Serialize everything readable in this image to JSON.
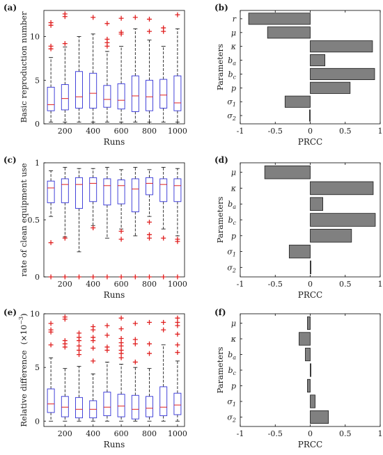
{
  "chart_data": [
    {
      "panel": "(a)",
      "type": "box",
      "xlabel": "Runs",
      "ylabel": "Basic reproduction number",
      "categories": [
        100,
        200,
        300,
        400,
        500,
        600,
        700,
        800,
        900,
        1000
      ],
      "xticks": [
        "200",
        "400",
        "600",
        "800",
        "1000"
      ],
      "ylim": [
        0,
        13
      ],
      "yticks": [
        "0",
        "5",
        "10"
      ],
      "boxes": [
        {
          "whislo": 0.2,
          "q1": 1.5,
          "med": 2.2,
          "q3": 4.2,
          "whishi": 7.6,
          "fliers": [
            8.6,
            8.9,
            11.3,
            11.6
          ]
        },
        {
          "whislo": 0.2,
          "q1": 1.6,
          "med": 2.9,
          "q3": 4.5,
          "whishi": 8.8,
          "fliers": [
            9.2,
            12.3,
            12.6
          ]
        },
        {
          "whislo": 0.2,
          "q1": 1.8,
          "med": 3.1,
          "q3": 6.0,
          "whishi": 10.0,
          "fliers": []
        },
        {
          "whislo": 0.2,
          "q1": 1.8,
          "med": 3.5,
          "q3": 5.8,
          "whishi": 10.3,
          "fliers": [
            12.2
          ]
        },
        {
          "whislo": 0.2,
          "q1": 1.9,
          "med": 2.8,
          "q3": 4.4,
          "whishi": 8.3,
          "fliers": [
            8.9,
            9.3,
            9.7,
            11.5
          ]
        },
        {
          "whislo": 0.2,
          "q1": 1.7,
          "med": 2.7,
          "q3": 4.6,
          "whishi": 8.9,
          "fliers": [
            10.3,
            10.5,
            12.1
          ]
        },
        {
          "whislo": 0.2,
          "q1": 1.4,
          "med": 3.2,
          "q3": 5.5,
          "whishi": 10.9,
          "fliers": [
            12.2
          ]
        },
        {
          "whislo": 0.2,
          "q1": 1.5,
          "med": 3.1,
          "q3": 5.0,
          "whishi": 9.6,
          "fliers": [
            10.6,
            12.0
          ]
        },
        {
          "whislo": 0.2,
          "q1": 1.8,
          "med": 3.3,
          "q3": 5.1,
          "whishi": 8.9,
          "fliers": [
            10.6,
            11.0
          ]
        },
        {
          "whislo": 0.2,
          "q1": 1.5,
          "med": 2.4,
          "q3": 5.5,
          "whishi": 10.9,
          "fliers": [
            12.5
          ]
        }
      ]
    },
    {
      "panel": "(b)",
      "type": "bar",
      "orientation": "horizontal",
      "xlabel": "PRCC",
      "ylabel": "Parameters",
      "xlim": [
        -1,
        1
      ],
      "xticks": [
        "-1",
        "-0.5",
        "0",
        "0.5",
        "1"
      ],
      "categories": [
        "r",
        "μ",
        "κ",
        "b_a",
        "b_c",
        "p",
        "σ_1",
        "σ_2"
      ],
      "values": [
        -0.88,
        -0.61,
        0.89,
        0.21,
        0.92,
        0.57,
        -0.36,
        -0.01
      ]
    },
    {
      "panel": "(c)",
      "type": "box",
      "xlabel": "Runs",
      "ylabel": "rate of clean equipment use",
      "categories": [
        100,
        200,
        300,
        400,
        500,
        600,
        700,
        800,
        900,
        1000
      ],
      "xticks": [
        "200",
        "400",
        "600",
        "800",
        "1000"
      ],
      "ylim": [
        0,
        1
      ],
      "yticks": [
        "0",
        "0.5",
        "1"
      ],
      "boxes": [
        {
          "whislo": 0.53,
          "q1": 0.65,
          "med": 0.78,
          "q3": 0.84,
          "whishi": 0.93,
          "fliers": [
            0.3,
            0.0
          ]
        },
        {
          "whislo": 0.35,
          "q1": 0.65,
          "med": 0.81,
          "q3": 0.86,
          "whishi": 0.96,
          "fliers": [
            0.34,
            0.0
          ]
        },
        {
          "whislo": 0.22,
          "q1": 0.6,
          "med": 0.81,
          "q3": 0.87,
          "whishi": 0.95,
          "fliers": [
            0.0
          ]
        },
        {
          "whislo": 0.45,
          "q1": 0.66,
          "med": 0.82,
          "q3": 0.87,
          "whishi": 0.95,
          "fliers": [
            0.43,
            0.0
          ]
        },
        {
          "whislo": 0.34,
          "q1": 0.63,
          "med": 0.8,
          "q3": 0.86,
          "whishi": 0.96,
          "fliers": [
            0.0
          ]
        },
        {
          "whislo": 0.42,
          "q1": 0.64,
          "med": 0.8,
          "q3": 0.85,
          "whishi": 0.94,
          "fliers": [
            0.4,
            0.33,
            0.0
          ]
        },
        {
          "whislo": 0.36,
          "q1": 0.57,
          "med": 0.77,
          "q3": 0.86,
          "whishi": 0.96,
          "fliers": [
            0.0
          ]
        },
        {
          "whislo": 0.53,
          "q1": 0.72,
          "med": 0.82,
          "q3": 0.87,
          "whishi": 0.94,
          "fliers": [
            0.48,
            0.37,
            0.34,
            0.0
          ]
        },
        {
          "whislo": 0.42,
          "q1": 0.66,
          "med": 0.81,
          "q3": 0.86,
          "whishi": 0.96,
          "fliers": [
            0.34,
            0.0
          ]
        },
        {
          "whislo": 0.36,
          "q1": 0.66,
          "med": 0.8,
          "q3": 0.86,
          "whishi": 0.95,
          "fliers": [
            0.33,
            0.31,
            0.0
          ]
        }
      ]
    },
    {
      "panel": "(d)",
      "type": "bar",
      "orientation": "horizontal",
      "xlabel": "PRCC",
      "ylabel": "Parameters",
      "xlim": [
        -1,
        1
      ],
      "xticks": [
        "-1",
        "-0.5",
        "0",
        "0.5",
        "1"
      ],
      "categories": [
        "μ",
        "κ",
        "b_a",
        "b_c",
        "p",
        "σ_1",
        "σ_2"
      ],
      "values": [
        -0.65,
        0.9,
        0.18,
        0.93,
        0.59,
        -0.3,
        0.01
      ]
    },
    {
      "panel": "(e)",
      "type": "box",
      "xlabel": "Runs",
      "ylabel": "Relative difference",
      "ylabel_unit": "(×10",
      "ylabel_unit_exp": "−3",
      "ylabel_unit_close": ")",
      "categories": [
        100,
        200,
        300,
        400,
        500,
        600,
        700,
        800,
        900,
        1000
      ],
      "xticks": [
        "200",
        "400",
        "600",
        "800",
        "1000"
      ],
      "ylim": [
        -0.5,
        10
      ],
      "yticks": [
        "0",
        "5",
        "10"
      ],
      "boxes": [
        {
          "whislo": 0,
          "q1": 0.8,
          "med": 1.6,
          "q3": 3.0,
          "whishi": 5.9,
          "fliers": [
            7.1,
            8.3,
            8.5,
            9.1
          ]
        },
        {
          "whislo": 0,
          "q1": 0.4,
          "med": 1.3,
          "q3": 2.3,
          "whishi": 4.9,
          "fliers": [
            6.9,
            7.2,
            7.5,
            9.5,
            9.7
          ]
        },
        {
          "whislo": 0,
          "q1": 0.3,
          "med": 1.1,
          "q3": 2.2,
          "whishi": 5.1,
          "fliers": [
            6.2,
            6.6,
            7.0,
            7.5,
            7.8,
            8.2
          ]
        },
        {
          "whislo": 0,
          "q1": 0.3,
          "med": 1.1,
          "q3": 1.9,
          "whishi": 4.4,
          "fliers": [
            5.6,
            6.8,
            7.5,
            7.8,
            8.5,
            8.8
          ]
        },
        {
          "whislo": 0,
          "q1": 0.5,
          "med": 1.3,
          "q3": 2.7,
          "whishi": 5.5,
          "fliers": [
            6.6,
            6.9,
            8.0,
            8.9
          ]
        },
        {
          "whislo": 0,
          "q1": 0.4,
          "med": 1.4,
          "q3": 2.5,
          "whishi": 5.3,
          "fliers": [
            5.9,
            6.3,
            6.6,
            7.0,
            7.3,
            7.7,
            8.6,
            9.6
          ]
        },
        {
          "whislo": 0,
          "q1": 0.2,
          "med": 1.1,
          "q3": 2.4,
          "whishi": 5.0,
          "fliers": [
            5.5,
            7.2,
            7.6,
            9.1
          ]
        },
        {
          "whislo": 0,
          "q1": 0.4,
          "med": 1.2,
          "q3": 2.3,
          "whishi": 4.9,
          "fliers": [
            6.3,
            7.2,
            9.2
          ]
        },
        {
          "whislo": 0,
          "q1": 0.5,
          "med": 1.3,
          "q3": 3.2,
          "whishi": 7.1,
          "fliers": [
            8.5,
            9.2
          ]
        },
        {
          "whislo": 0,
          "q1": 0.6,
          "med": 1.5,
          "q3": 2.6,
          "whishi": 5.6,
          "fliers": [
            6.4,
            7.1,
            8.1,
            8.9,
            9.2,
            9.6
          ]
        }
      ]
    },
    {
      "panel": "(f)",
      "type": "bar",
      "orientation": "horizontal",
      "xlabel": "PRCC",
      "ylabel": "Parameters",
      "xlim": [
        -1,
        1
      ],
      "xticks": [
        "-1",
        "-0.5",
        "0",
        "0.5",
        "1"
      ],
      "categories": [
        "μ",
        "κ",
        "b_a",
        "b_c",
        "p",
        "σ_1",
        "σ_2"
      ],
      "values": [
        -0.04,
        -0.16,
        -0.07,
        0.01,
        -0.04,
        0.07,
        0.26
      ]
    }
  ],
  "colors": {
    "box": "#2f2fd6",
    "median": "#e02020",
    "flier": "#e02020",
    "whisker": "#000000",
    "bar_fill": "#808080",
    "bar_edge": "#1a1a1a"
  }
}
